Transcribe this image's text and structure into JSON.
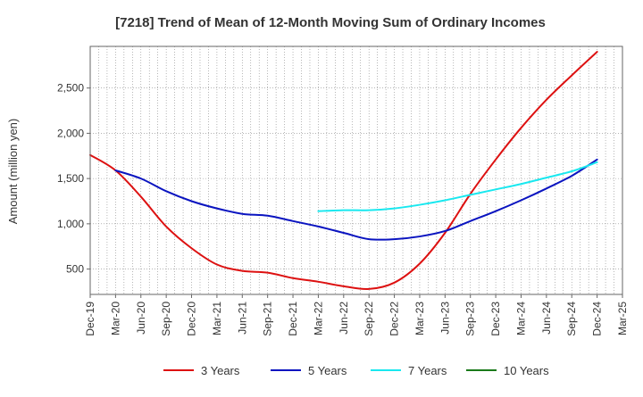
{
  "chart_data": {
    "type": "line",
    "title": "[7218]  Trend of Mean of 12-Month Moving Sum of Ordinary Incomes",
    "xlabel": "",
    "ylabel": "Amount (million yen)",
    "ylim": [
      220,
      2960
    ],
    "yticks": [
      500,
      1000,
      1500,
      2000,
      2500
    ],
    "ytick_labels": [
      "500",
      "1,000",
      "1,500",
      "2,000",
      "2,500"
    ],
    "categories": [
      "Dec-19",
      "Mar-20",
      "Jun-20",
      "Sep-20",
      "Dec-20",
      "Mar-21",
      "Jun-21",
      "Sep-21",
      "Dec-21",
      "Mar-22",
      "Jun-22",
      "Sep-22",
      "Dec-22",
      "Mar-23",
      "Jun-23",
      "Sep-23",
      "Dec-23",
      "Mar-24",
      "Jun-24",
      "Sep-24",
      "Dec-24",
      "Mar-25"
    ],
    "grid": true,
    "legend_position": "bottom",
    "series": [
      {
        "name": "3 Years",
        "color": "#dd1111",
        "values": [
          1760,
          1590,
          1300,
          970,
          730,
          550,
          480,
          460,
          400,
          360,
          310,
          280,
          350,
          560,
          900,
          1330,
          1710,
          2060,
          2370,
          2640,
          2900,
          null
        ]
      },
      {
        "name": "5 Years",
        "color": "#0a14c0",
        "values": [
          null,
          1590,
          1500,
          1360,
          1250,
          1170,
          1110,
          1090,
          1030,
          970,
          900,
          830,
          830,
          860,
          920,
          1030,
          1140,
          1260,
          1390,
          1530,
          1710,
          null
        ]
      },
      {
        "name": "7 Years",
        "color": "#19e8ef",
        "values": [
          null,
          null,
          null,
          null,
          null,
          null,
          null,
          null,
          null,
          1140,
          1150,
          1150,
          1170,
          1210,
          1260,
          1320,
          1380,
          1440,
          1510,
          1580,
          1680,
          null
        ]
      },
      {
        "name": "10 Years",
        "color": "#1a7a1a",
        "values": [
          null,
          null,
          null,
          null,
          null,
          null,
          null,
          null,
          null,
          null,
          null,
          null,
          null,
          null,
          null,
          null,
          null,
          null,
          null,
          null,
          null,
          null
        ]
      }
    ]
  }
}
